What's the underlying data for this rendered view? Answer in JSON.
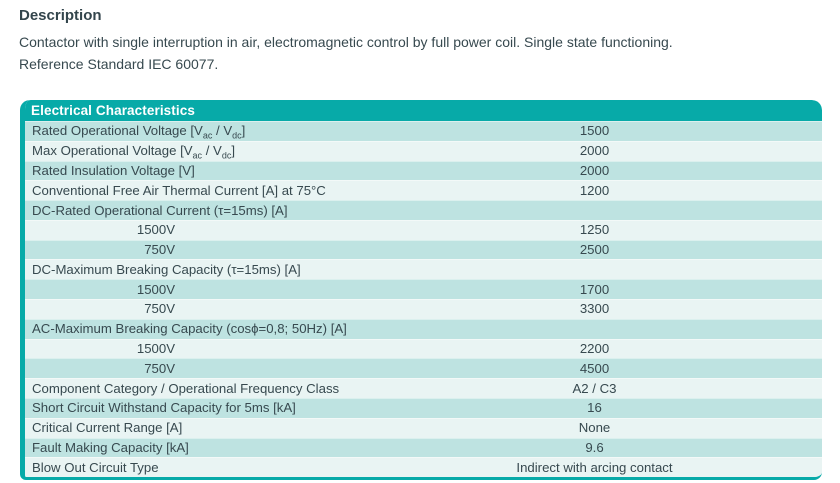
{
  "description": {
    "title": "Description",
    "line1": "Contactor with single interruption in air, electromagnetic control by full power coil. Single state functioning.",
    "line2": "Reference Standard IEC 60077."
  },
  "table": {
    "header": "Electrical Characteristics",
    "rows": [
      {
        "type": "data",
        "label_parts": [
          {
            "t": "Rated Operational Voltage [V"
          },
          {
            "sub": "ac"
          },
          {
            "t": " / V"
          },
          {
            "sub": "dc"
          },
          {
            "t": "]"
          }
        ],
        "label": "Rated Operational Voltage [Vac / Vdc]",
        "value": "1500"
      },
      {
        "type": "data",
        "label_parts": [
          {
            "t": "Max Operational Voltage [V"
          },
          {
            "sub": "ac"
          },
          {
            "t": " / V"
          },
          {
            "sub": "dc"
          },
          {
            "t": "]"
          }
        ],
        "label": "Max Operational Voltage [Vac / Vdc]",
        "value": "2000"
      },
      {
        "type": "data",
        "label": "Rated Insulation Voltage [V]",
        "value": "2000"
      },
      {
        "type": "data",
        "label": "Conventional Free Air Thermal Current [A] at 75°C",
        "value": "1200"
      },
      {
        "type": "section",
        "label": "DC-Rated Operational Current (τ=15ms) [A]"
      },
      {
        "type": "sub",
        "label": "1500V",
        "value": "1250"
      },
      {
        "type": "sub",
        "label": "750V",
        "value": "2500"
      },
      {
        "type": "section",
        "label": "DC-Maximum Breaking Capacity (τ=15ms) [A]"
      },
      {
        "type": "sub",
        "label": "1500V",
        "value": "1700"
      },
      {
        "type": "sub",
        "label": "750V",
        "value": "3300"
      },
      {
        "type": "section",
        "label": "AC-Maximum Breaking Capacity (cosϕ=0,8; 50Hz) [A]"
      },
      {
        "type": "sub",
        "label": "1500V",
        "value": "2200"
      },
      {
        "type": "sub",
        "label": "750V",
        "value": "4500"
      },
      {
        "type": "data",
        "label": "Component Category / Operational Frequency Class",
        "value": "A2 / C3"
      },
      {
        "type": "data",
        "label": "Short Circuit Withstand Capacity for 5ms [kA]",
        "value": "16"
      },
      {
        "type": "data",
        "label": "Critical Current Range [A]",
        "value": "None"
      },
      {
        "type": "data",
        "label": "Fault Making Capacity [kA]",
        "value": "9.6"
      },
      {
        "type": "data",
        "label": "Blow Out Circuit Type",
        "value": "Indirect with arcing contact"
      }
    ]
  },
  "colors": {
    "header_teal": "#07aaa8",
    "row_teal": "#bee3e1",
    "row_pale": "#e9f4f3",
    "text": "#37494f",
    "header_text": "#ffffff"
  }
}
